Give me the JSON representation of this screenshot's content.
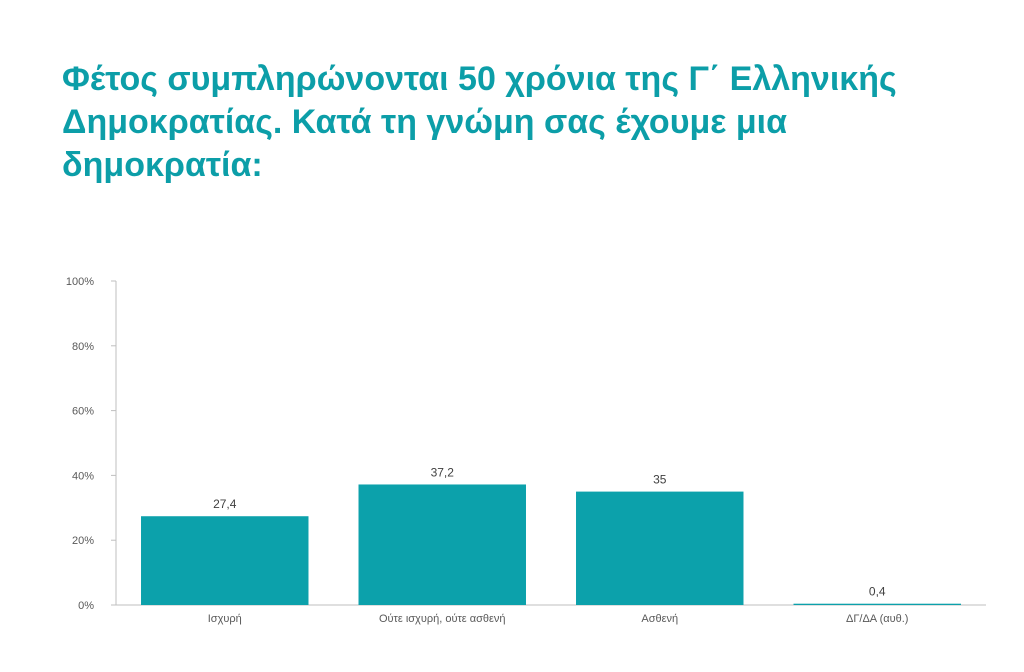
{
  "title": "Φέτος συμπληρώνονται 50 χρόνια της Γ΄ Ελληνικής Δημοκρατίας. Κατά τη γνώμη σας έχουμε μια δημοκρατία:",
  "colors": {
    "accent": "#0c9ea8",
    "bar": "#0ca1ab",
    "axis": "#bfbfbf",
    "tick_text": "#595959",
    "label_text": "#404040"
  },
  "chart_data": {
    "type": "bar",
    "title": "Φέτος συμπληρώνονται 50 χρόνια της Γ΄ Ελληνικής Δημοκρατίας. Κατά τη γνώμη σας έχουμε μια δημοκρατία:",
    "categories": [
      "Ισχυρή",
      "Ούτε ισχυρή, ούτε ασθενή",
      "Ασθενή",
      "ΔΓ/ΔΑ (αυθ.)"
    ],
    "values": [
      27.4,
      37.2,
      35,
      0.4
    ],
    "value_labels": [
      "27,4",
      "37,2",
      "35",
      "0,4"
    ],
    "ylim": [
      0,
      100
    ],
    "yticks": [
      0,
      20,
      40,
      60,
      80,
      100
    ],
    "ytick_labels": [
      "0%",
      "20%",
      "40%",
      "60%",
      "80%",
      "100%"
    ],
    "xlabel": "",
    "ylabel": "",
    "grid": false,
    "legend": "none"
  }
}
